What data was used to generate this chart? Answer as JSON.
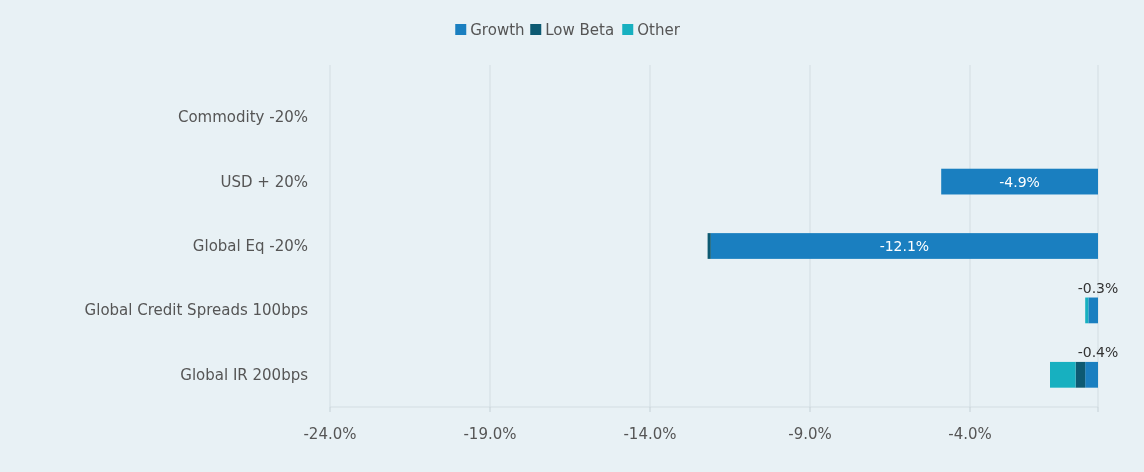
{
  "chart_data": {
    "type": "bar",
    "orientation": "horizontal",
    "stacked": true,
    "categories": [
      "Commodity -20%",
      "USD + 20%",
      "Global Eq -20%",
      "Global Credit Spreads 100bps",
      "Global IR 200bps"
    ],
    "series": [
      {
        "name": "Growth",
        "color": "#1a7fc0",
        "values": [
          null,
          -4.9,
          -12.1,
          -0.3,
          -0.4
        ],
        "value_labels": [
          null,
          "-4.9%",
          "-12.1%",
          "-0.3%",
          "-0.4%"
        ]
      },
      {
        "name": "Low Beta",
        "color": "#0d5a72",
        "values": [
          null,
          null,
          -0.1,
          null,
          -0.3
        ]
      },
      {
        "name": "Other",
        "color": "#17b0c0",
        "values": [
          null,
          null,
          null,
          -0.1,
          -0.8
        ]
      }
    ],
    "xlim": [
      -24,
      0
    ],
    "xticks": [
      {
        "value": -24,
        "label": "-24.0%"
      },
      {
        "value": -19,
        "label": "-19.0%"
      },
      {
        "value": -14,
        "label": "-14.0%"
      },
      {
        "value": -9,
        "label": "-9.0%"
      },
      {
        "value": -4,
        "label": "-4.0%"
      },
      {
        "value": 0,
        "label": null
      }
    ],
    "grid": "x",
    "legend": "top"
  }
}
